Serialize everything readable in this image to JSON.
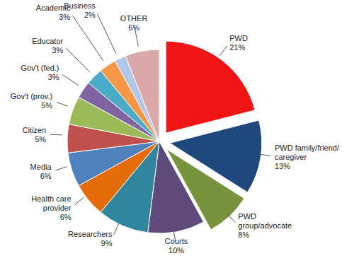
{
  "chart_data": {
    "type": "pie",
    "categories": [
      "PWD",
      "PWD family/friend/\ncaregiver",
      "PWD\ngroup/advocate",
      "Courts",
      "Researchers",
      "Health care\nprovider",
      "Media",
      "Citizen",
      "Gov't (prov.)",
      "Gov't (fed.)",
      "Educator",
      "Academic",
      "Business",
      "OTHER"
    ],
    "values": [
      21,
      13,
      8,
      10,
      9,
      6,
      6,
      5,
      5,
      3,
      3,
      3,
      2,
      6
    ],
    "value_labels": [
      "21%",
      "13%",
      "8%",
      "10%",
      "9%",
      "6%",
      "6%",
      "5%",
      "5%",
      "3%",
      "3%",
      "3%",
      "2%",
      "6%"
    ],
    "colors": [
      "#f01414",
      "#1f497d",
      "#77933c",
      "#604a7b",
      "#31859c",
      "#e46c0a",
      "#4f81bd",
      "#c0504d",
      "#9bbb59",
      "#8064a2",
      "#4bacc6",
      "#f79646",
      "#b3c6e7",
      "#dba9a8"
    ]
  }
}
